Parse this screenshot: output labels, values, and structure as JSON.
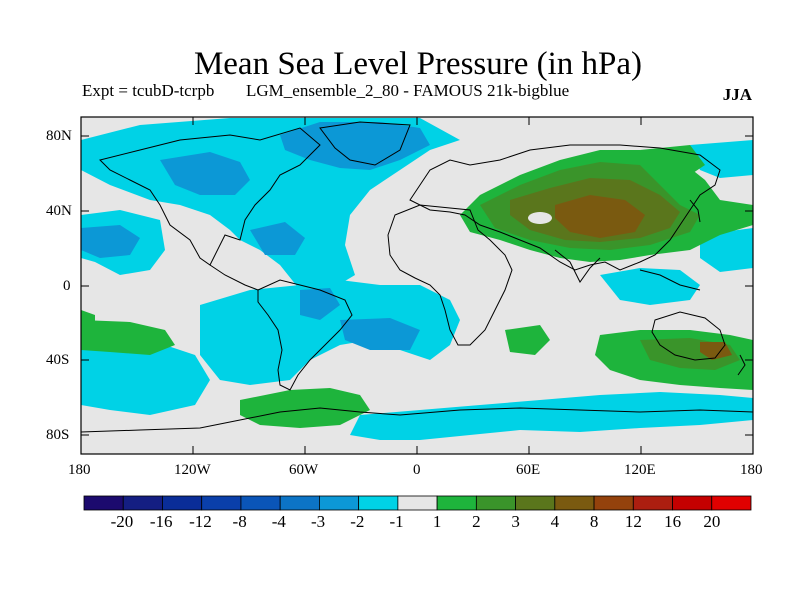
{
  "title": "Mean Sea Level Pressure (in hPa)",
  "subtitle_left": "Expt = tcubD-tcrpb",
  "subtitle_right": "LGM_ensemble_2_80 - FAMOUS 21k-bigblue",
  "season": "JJA",
  "y_ticks": [
    "80N",
    "40N",
    "0",
    "40S",
    "80S"
  ],
  "x_ticks": [
    "180",
    "120W",
    "60W",
    "0",
    "60E",
    "120E",
    "180"
  ],
  "legend": {
    "labels": [
      "-20",
      "-16",
      "-12",
      "-8",
      "-4",
      "-3",
      "-2",
      "-1",
      "1",
      "2",
      "3",
      "4",
      "8",
      "12",
      "16",
      "20"
    ],
    "colors": [
      "#1c0a6e",
      "#141e82",
      "#0a2d98",
      "#0a3faa",
      "#0a55b8",
      "#0c74c6",
      "#0c98d6",
      "#00d2e6",
      "#e6e6e6",
      "#1eb43c",
      "#3a942a",
      "#5a761c",
      "#7a5a10",
      "#94420c",
      "#ac1e10",
      "#c40000",
      "#e00000"
    ]
  },
  "colors": {
    "neutral": "#e6e6e6",
    "neg1": "#00d2e6",
    "neg2": "#0c98d6",
    "neg3": "#0c74c6",
    "pos1": "#1eb43c",
    "pos2": "#3a942a",
    "pos3": "#5a761c",
    "pos4": "#7a5a10"
  }
}
